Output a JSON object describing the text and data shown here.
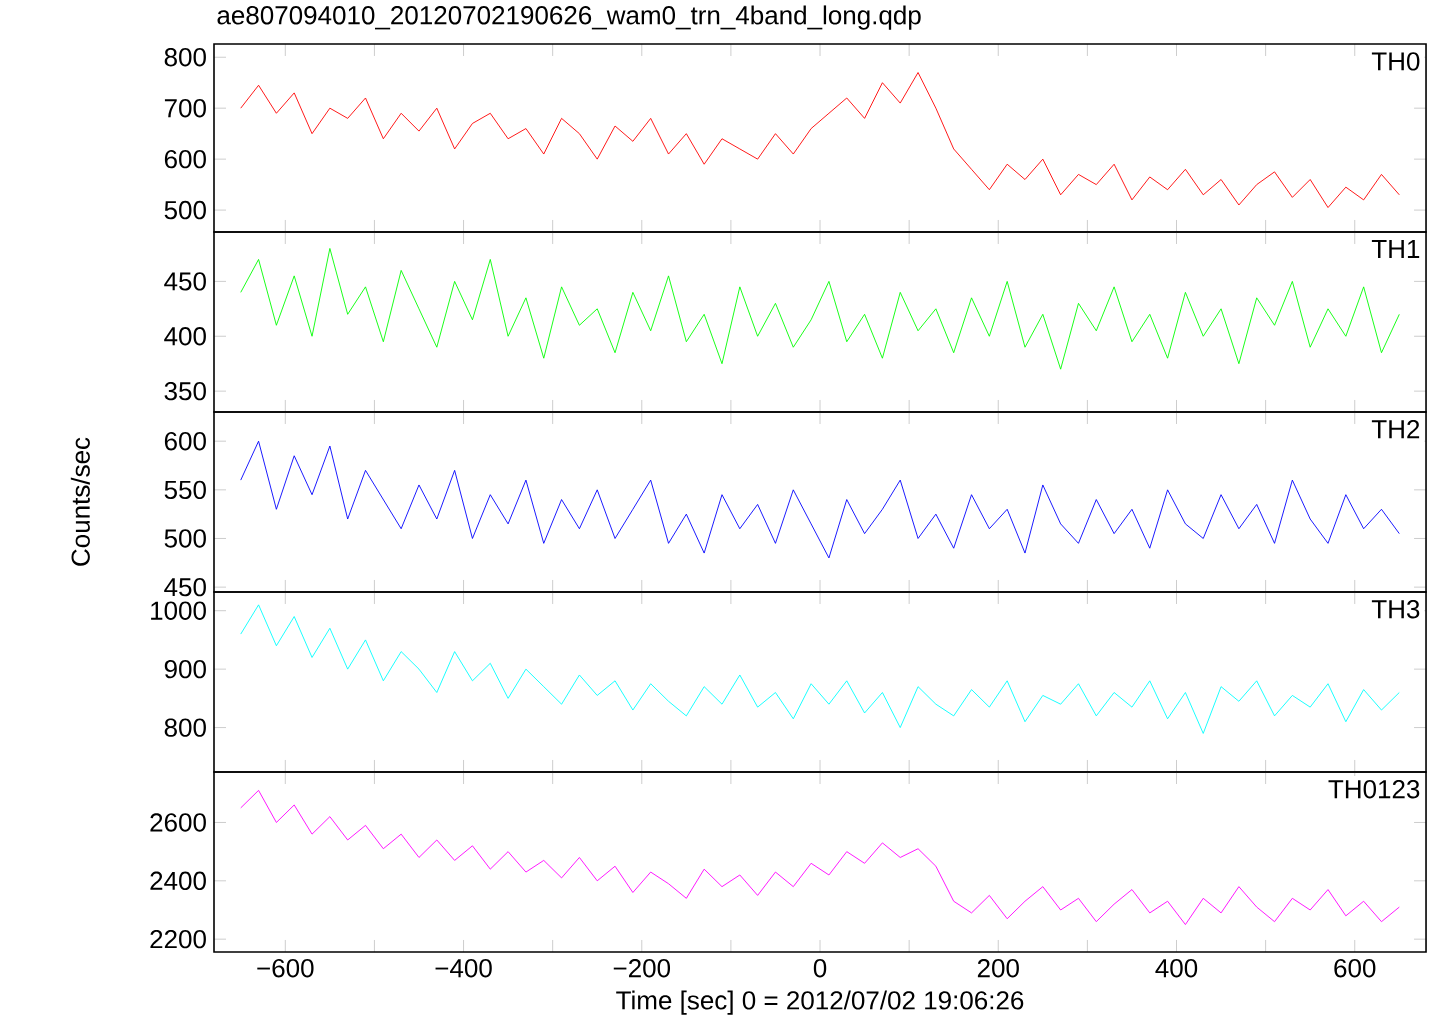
{
  "chart_data": [
    {
      "type": "line",
      "title": "ae807094010_20120702190626_wam0_trn_4band_long.qdp",
      "tick_labels": "y",
      "marker": "none",
      "line_style": "solid",
      "x": [
        -650,
        -630,
        -610,
        -590,
        -570,
        -550,
        -530,
        -510,
        -490,
        -470,
        -450,
        -430,
        -410,
        -390,
        -370,
        -350,
        -330,
        -310,
        -290,
        -270,
        -250,
        -230,
        -210,
        -190,
        -170,
        -150,
        -130,
        -110,
        -90,
        -70,
        -50,
        -30,
        -10,
        10,
        30,
        50,
        70,
        90,
        110,
        130,
        150,
        170,
        190,
        210,
        230,
        250,
        270,
        290,
        310,
        330,
        350,
        370,
        390,
        410,
        430,
        450,
        470,
        490,
        510,
        530,
        550,
        570,
        590,
        610,
        630,
        650
      ],
      "series": [
        {
          "name": "TH0",
          "color": "#ff0000",
          "values": [
            700,
            745,
            690,
            730,
            650,
            700,
            680,
            720,
            640,
            690,
            655,
            700,
            620,
            670,
            690,
            640,
            660,
            610,
            680,
            650,
            600,
            665,
            635,
            680,
            610,
            650,
            590,
            640,
            620,
            600,
            650,
            610,
            660,
            690,
            720,
            680,
            750,
            710,
            770,
            700,
            620,
            580,
            540,
            590,
            560,
            600,
            530,
            570,
            550,
            590,
            520,
            565,
            540,
            580,
            530,
            560,
            510,
            550,
            575,
            525,
            560,
            505,
            545,
            520,
            570,
            530
          ]
        }
      ],
      "xlim": [
        -680,
        680
      ],
      "ylim": [
        457,
        826
      ],
      "xticks": [
        -600,
        -500,
        -400,
        -300,
        -200,
        -100,
        0,
        100,
        200,
        300,
        400,
        500,
        600
      ],
      "yticks": [
        500,
        600,
        700,
        800
      ]
    },
    {
      "type": "line",
      "tick_labels": "y",
      "marker": "none",
      "line_style": "solid",
      "x": [
        -650,
        -630,
        -610,
        -590,
        -570,
        -550,
        -530,
        -510,
        -490,
        -470,
        -450,
        -430,
        -410,
        -390,
        -370,
        -350,
        -330,
        -310,
        -290,
        -270,
        -250,
        -230,
        -210,
        -190,
        -170,
        -150,
        -130,
        -110,
        -90,
        -70,
        -50,
        -30,
        -10,
        10,
        30,
        50,
        70,
        90,
        110,
        130,
        150,
        170,
        190,
        210,
        230,
        250,
        270,
        290,
        310,
        330,
        350,
        370,
        390,
        410,
        430,
        450,
        470,
        490,
        510,
        530,
        550,
        570,
        590,
        610,
        630,
        650
      ],
      "series": [
        {
          "name": "TH1",
          "color": "#00ff00",
          "values": [
            440,
            470,
            410,
            455,
            400,
            480,
            420,
            445,
            395,
            460,
            425,
            390,
            450,
            415,
            470,
            400,
            435,
            380,
            445,
            410,
            425,
            385,
            440,
            405,
            455,
            395,
            420,
            375,
            445,
            400,
            430,
            390,
            415,
            450,
            395,
            420,
            380,
            440,
            405,
            425,
            385,
            435,
            400,
            450,
            390,
            420,
            370,
            430,
            405,
            445,
            395,
            420,
            380,
            440,
            400,
            425,
            375,
            435,
            410,
            450,
            390,
            425,
            400,
            445,
            385,
            420
          ]
        }
      ],
      "xlim": [
        -680,
        680
      ],
      "ylim": [
        331,
        495
      ],
      "xticks": [
        -600,
        -500,
        -400,
        -300,
        -200,
        -100,
        0,
        100,
        200,
        300,
        400,
        500,
        600
      ],
      "yticks": [
        350,
        400,
        450
      ]
    },
    {
      "type": "line",
      "ylabel": "Counts/sec",
      "tick_labels": "y",
      "marker": "none",
      "line_style": "solid",
      "x": [
        -650,
        -630,
        -610,
        -590,
        -570,
        -550,
        -530,
        -510,
        -490,
        -470,
        -450,
        -430,
        -410,
        -390,
        -370,
        -350,
        -330,
        -310,
        -290,
        -270,
        -250,
        -230,
        -210,
        -190,
        -170,
        -150,
        -130,
        -110,
        -90,
        -70,
        -50,
        -30,
        -10,
        10,
        30,
        50,
        70,
        90,
        110,
        130,
        150,
        170,
        190,
        210,
        230,
        250,
        270,
        290,
        310,
        330,
        350,
        370,
        390,
        410,
        430,
        450,
        470,
        490,
        510,
        530,
        550,
        570,
        590,
        610,
        630,
        650
      ],
      "series": [
        {
          "name": "TH2",
          "color": "#0000ff",
          "values": [
            560,
            600,
            530,
            585,
            545,
            595,
            520,
            570,
            540,
            510,
            555,
            520,
            570,
            500,
            545,
            515,
            560,
            495,
            540,
            510,
            550,
            500,
            530,
            560,
            495,
            525,
            485,
            545,
            510,
            535,
            495,
            550,
            515,
            480,
            540,
            505,
            530,
            560,
            500,
            525,
            490,
            545,
            510,
            530,
            485,
            555,
            515,
            495,
            540,
            505,
            530,
            490,
            550,
            515,
            500,
            545,
            510,
            535,
            495,
            560,
            520,
            495,
            545,
            510,
            530,
            505
          ]
        }
      ],
      "xlim": [
        -680,
        680
      ],
      "ylim": [
        445,
        630
      ],
      "xticks": [
        -600,
        -500,
        -400,
        -300,
        -200,
        -100,
        0,
        100,
        200,
        300,
        400,
        500,
        600
      ],
      "yticks": [
        450,
        500,
        550,
        600
      ]
    },
    {
      "type": "line",
      "tick_labels": "y",
      "marker": "none",
      "line_style": "solid",
      "x": [
        -650,
        -630,
        -610,
        -590,
        -570,
        -550,
        -530,
        -510,
        -490,
        -470,
        -450,
        -430,
        -410,
        -390,
        -370,
        -350,
        -330,
        -310,
        -290,
        -270,
        -250,
        -230,
        -210,
        -190,
        -170,
        -150,
        -130,
        -110,
        -90,
        -70,
        -50,
        -30,
        -10,
        10,
        30,
        50,
        70,
        90,
        110,
        130,
        150,
        170,
        190,
        210,
        230,
        250,
        270,
        290,
        310,
        330,
        350,
        370,
        390,
        410,
        430,
        450,
        470,
        490,
        510,
        530,
        550,
        570,
        590,
        610,
        630,
        650
      ],
      "series": [
        {
          "name": "TH3",
          "color": "#00ffff",
          "values": [
            960,
            1010,
            940,
            990,
            920,
            970,
            900,
            950,
            880,
            930,
            900,
            860,
            930,
            880,
            910,
            850,
            900,
            870,
            840,
            890,
            855,
            880,
            830,
            875,
            845,
            820,
            870,
            840,
            890,
            835,
            860,
            815,
            875,
            840,
            880,
            825,
            860,
            800,
            870,
            840,
            820,
            865,
            835,
            880,
            810,
            855,
            840,
            875,
            820,
            860,
            835,
            880,
            815,
            860,
            790,
            870,
            845,
            880,
            820,
            855,
            835,
            875,
            810,
            865,
            830,
            860
          ]
        }
      ],
      "xlim": [
        -680,
        680
      ],
      "ylim": [
        724,
        1032
      ],
      "xticks": [
        -600,
        -500,
        -400,
        -300,
        -200,
        -100,
        0,
        100,
        200,
        300,
        400,
        500,
        600
      ],
      "yticks": [
        800,
        900,
        1000
      ]
    },
    {
      "type": "line",
      "xlabel": "Time [sec] 0 = 2012/07/02 19:06:26",
      "marker": "none",
      "line_style": "solid",
      "x": [
        -650,
        -630,
        -610,
        -590,
        -570,
        -550,
        -530,
        -510,
        -490,
        -470,
        -450,
        -430,
        -410,
        -390,
        -370,
        -350,
        -330,
        -310,
        -290,
        -270,
        -250,
        -230,
        -210,
        -190,
        -170,
        -150,
        -130,
        -110,
        -90,
        -70,
        -50,
        -30,
        -10,
        10,
        30,
        50,
        70,
        90,
        110,
        130,
        150,
        170,
        190,
        210,
        230,
        250,
        270,
        290,
        310,
        330,
        350,
        370,
        390,
        410,
        430,
        450,
        470,
        490,
        510,
        530,
        550,
        570,
        590,
        610,
        630,
        650
      ],
      "series": [
        {
          "name": "TH0123",
          "color": "#ff00ff",
          "values": [
            2650,
            2710,
            2600,
            2660,
            2560,
            2620,
            2540,
            2590,
            2510,
            2560,
            2480,
            2540,
            2470,
            2520,
            2440,
            2500,
            2430,
            2470,
            2410,
            2480,
            2400,
            2450,
            2360,
            2430,
            2390,
            2340,
            2440,
            2380,
            2420,
            2350,
            2430,
            2380,
            2460,
            2420,
            2500,
            2460,
            2530,
            2480,
            2510,
            2450,
            2330,
            2290,
            2350,
            2270,
            2330,
            2380,
            2300,
            2340,
            2260,
            2320,
            2370,
            2290,
            2330,
            2250,
            2340,
            2290,
            2380,
            2310,
            2260,
            2340,
            2300,
            2370,
            2280,
            2330,
            2260,
            2310
          ]
        }
      ],
      "xlim": [
        -680,
        680
      ],
      "ylim": [
        2156,
        2773
      ],
      "xticks": [
        {
          "value": -600,
          "label": "−600"
        },
        {
          "value": -500,
          "label": null
        },
        {
          "value": -400,
          "label": "−400"
        },
        {
          "value": -300,
          "label": null
        },
        {
          "value": -200,
          "label": "−200"
        },
        {
          "value": -100,
          "label": null
        },
        0,
        {
          "value": 100,
          "label": null
        },
        200,
        {
          "value": 300,
          "label": null
        },
        400,
        {
          "value": 500,
          "label": null
        },
        600
      ],
      "yticks": [
        2200,
        2400,
        2600
      ]
    }
  ]
}
